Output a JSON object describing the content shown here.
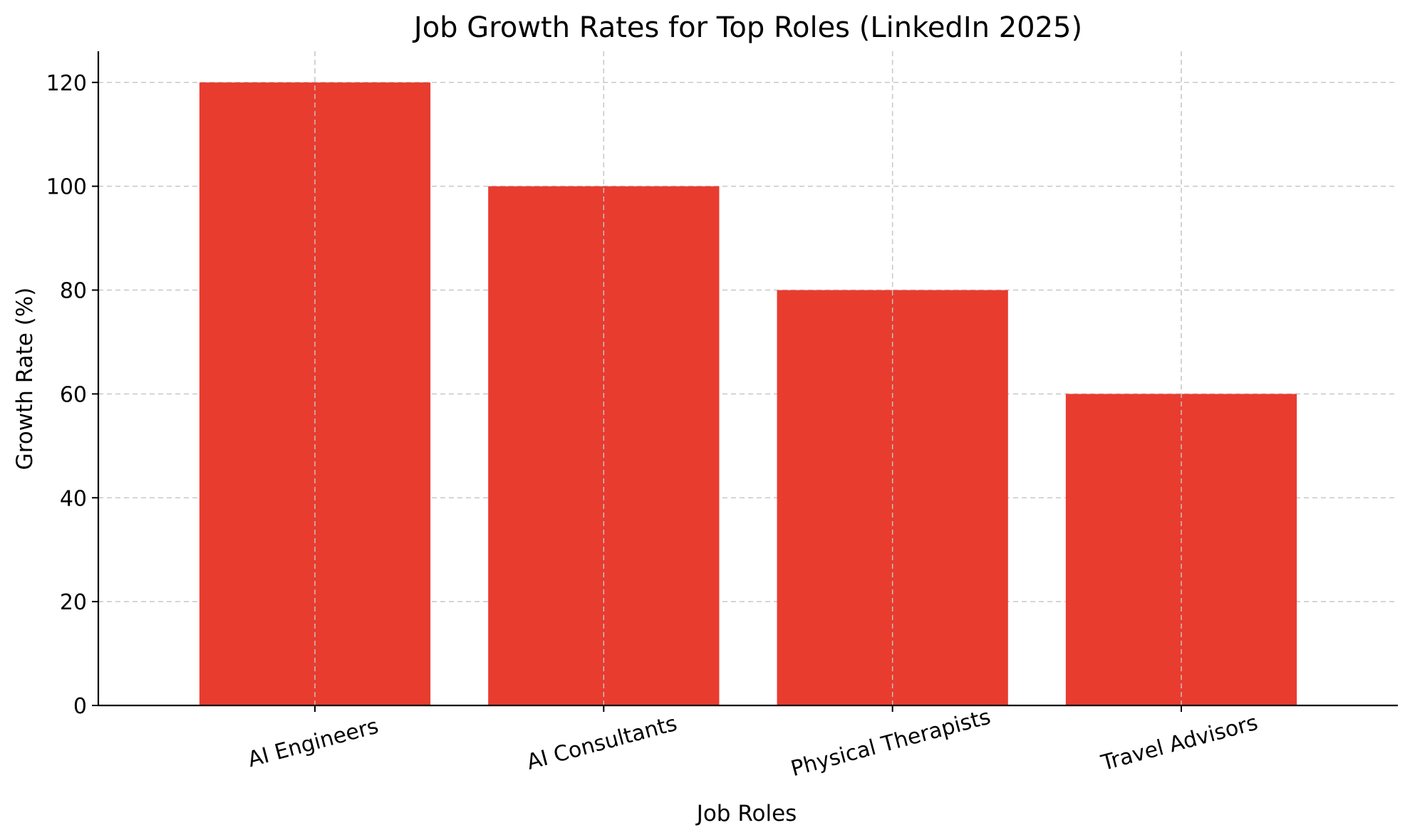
{
  "chart_data": {
    "type": "bar",
    "title": "Job Growth Rates for Top Roles (LinkedIn 2025)",
    "xlabel": "Job Roles",
    "ylabel": "Growth Rate (%)",
    "categories": [
      "AI Engineers",
      "AI Consultants",
      "Physical Therapists",
      "Travel Advisors"
    ],
    "values": [
      120,
      100,
      80,
      60
    ],
    "yticks": [
      0,
      20,
      40,
      60,
      80,
      100,
      120
    ],
    "ylim": [
      0,
      126
    ],
    "grid": true,
    "bar_color": "#e83c2f",
    "legend": "none"
  }
}
